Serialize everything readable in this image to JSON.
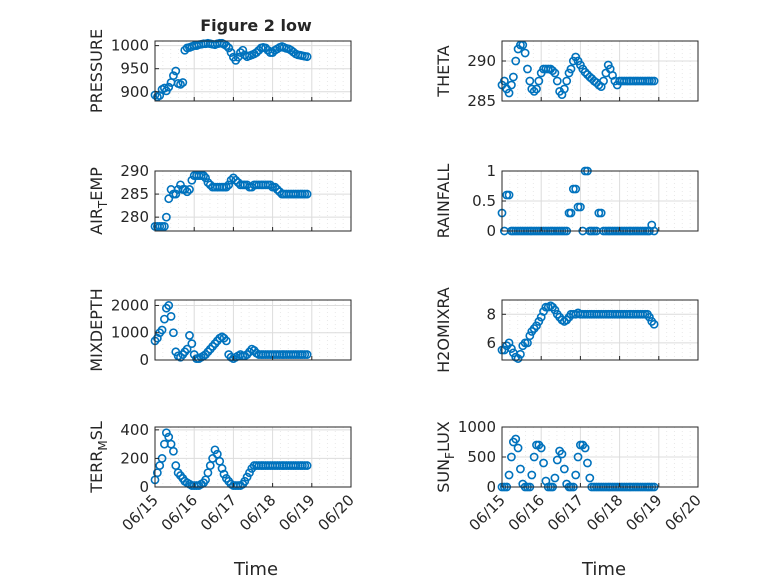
{
  "figure": {
    "title": "Figure 2 low",
    "xlabel": "Time"
  },
  "style": {
    "marker_color": "#0072BD",
    "grid_color": "#d9d9d9",
    "axis_color": "#262626"
  },
  "chart_data": [
    {
      "type": "scatter",
      "id": "pressure",
      "ylabel": "PRESSURE",
      "title": "Figure 2 low",
      "x_ticks": [],
      "y_ticks": [
        "900",
        "950",
        "1000"
      ],
      "y_tick_values": [
        900,
        950,
        1000
      ],
      "xlim": [
        15.0,
        20.0
      ],
      "ylim": [
        880,
        1010
      ],
      "x": [
        15.0,
        15.06,
        15.12,
        15.18,
        15.24,
        15.29,
        15.35,
        15.41,
        15.47,
        15.53,
        15.59,
        15.65,
        15.71,
        15.76,
        15.82,
        15.88,
        15.94,
        16.0,
        16.06,
        16.12,
        16.18,
        16.24,
        16.29,
        16.35,
        16.41,
        16.47,
        16.53,
        16.59,
        16.65,
        16.71,
        16.76,
        16.82,
        16.88,
        16.94,
        17.0,
        17.06,
        17.12,
        17.18,
        17.24,
        17.29,
        17.35,
        17.41,
        17.47,
        17.53,
        17.59,
        17.65,
        17.71,
        17.76,
        17.82,
        17.88,
        17.94,
        18.0,
        18.06,
        18.12,
        18.18,
        18.24,
        18.29,
        18.35,
        18.41,
        18.47,
        18.53,
        18.59,
        18.65,
        18.71,
        18.76,
        18.82,
        18.88
      ],
      "y": [
        893,
        889,
        892,
        905,
        908,
        902,
        910,
        920,
        935,
        945,
        918,
        916,
        920,
        990,
        995,
        996,
        998,
        1000,
        1000,
        1002,
        1003,
        1004,
        1004,
        1005,
        1004,
        1003,
        1002,
        1004,
        1005,
        1005,
        1003,
        1000,
        995,
        985,
        975,
        968,
        975,
        985,
        990,
        980,
        976,
        978,
        980,
        982,
        985,
        990,
        995,
        996,
        995,
        990,
        985,
        985,
        990,
        993,
        996,
        998,
        996,
        994,
        993,
        990,
        986,
        982,
        980,
        979,
        978,
        977,
        976
      ]
    },
    {
      "type": "scatter",
      "id": "theta",
      "ylabel": "THETA",
      "x_ticks": [],
      "y_ticks": [
        "285",
        "290"
      ],
      "y_tick_values": [
        285,
        290
      ],
      "xlim": [
        15.0,
        20.0
      ],
      "ylim": [
        285,
        292.5
      ],
      "x": [
        15.0,
        15.06,
        15.12,
        15.18,
        15.24,
        15.29,
        15.35,
        15.41,
        15.47,
        15.53,
        15.59,
        15.65,
        15.71,
        15.76,
        15.82,
        15.88,
        15.94,
        16.0,
        16.06,
        16.12,
        16.18,
        16.24,
        16.29,
        16.35,
        16.41,
        16.47,
        16.53,
        16.59,
        16.65,
        16.71,
        16.76,
        16.82,
        16.88,
        16.94,
        17.0,
        17.06,
        17.12,
        17.18,
        17.24,
        17.29,
        17.35,
        17.41,
        17.47,
        17.53,
        17.59,
        17.65,
        17.71,
        17.76,
        17.82,
        17.88,
        17.94,
        18.0,
        18.06,
        18.12,
        18.18,
        18.24,
        18.29,
        18.35,
        18.41,
        18.47,
        18.53,
        18.59,
        18.65,
        18.71,
        18.76,
        18.82,
        18.88
      ],
      "y": [
        287,
        287.5,
        286.5,
        286,
        287,
        288,
        290,
        291.5,
        292,
        292,
        291,
        289,
        287.5,
        286.5,
        286.2,
        286.5,
        287.5,
        288.5,
        289,
        289,
        289,
        289,
        288.8,
        288.5,
        287.5,
        286.2,
        285.8,
        286.5,
        287.5,
        288.5,
        289,
        290,
        290.5,
        290,
        289.5,
        289,
        288.6,
        288.3,
        288,
        287.8,
        287.5,
        287.3,
        287,
        286.8,
        287.5,
        288.5,
        289.5,
        289,
        288.2,
        287.5,
        287,
        287.5,
        287.5,
        287.5,
        287.5,
        287.5,
        287.5,
        287.5,
        287.5,
        287.5,
        287.5,
        287.5,
        287.5,
        287.5,
        287.5,
        287.5,
        287.5
      ]
    },
    {
      "type": "scatter",
      "id": "air_temp",
      "ylabel": "AIR_TEMP",
      "x_ticks": [],
      "y_ticks": [
        "280",
        "285",
        "290"
      ],
      "y_tick_values": [
        280,
        285,
        290
      ],
      "xlim": [
        15.0,
        20.0
      ],
      "ylim": [
        277,
        290
      ],
      "x": [
        15.0,
        15.06,
        15.12,
        15.18,
        15.24,
        15.29,
        15.35,
        15.41,
        15.47,
        15.53,
        15.59,
        15.65,
        15.71,
        15.76,
        15.82,
        15.88,
        15.94,
        16.0,
        16.06,
        16.12,
        16.18,
        16.24,
        16.29,
        16.35,
        16.41,
        16.47,
        16.53,
        16.59,
        16.65,
        16.71,
        16.76,
        16.82,
        16.88,
        16.94,
        17.0,
        17.06,
        17.12,
        17.18,
        17.24,
        17.29,
        17.35,
        17.41,
        17.47,
        17.53,
        17.59,
        17.65,
        17.71,
        17.76,
        17.82,
        17.88,
        17.94,
        18.0,
        18.06,
        18.12,
        18.18,
        18.24,
        18.29,
        18.35,
        18.41,
        18.47,
        18.53,
        18.59,
        18.65,
        18.71,
        18.76,
        18.82,
        18.88
      ],
      "y": [
        278,
        278,
        278,
        278,
        278,
        280,
        284,
        286,
        285,
        285,
        286,
        287,
        286,
        286,
        285.5,
        286,
        288,
        289,
        289,
        289,
        289,
        289,
        288.5,
        287.5,
        287,
        286.5,
        286.5,
        286.5,
        286.5,
        286.5,
        286.5,
        286.5,
        287,
        288,
        288.5,
        288,
        287.5,
        287,
        287,
        287,
        287,
        286.5,
        286.5,
        287,
        287,
        287,
        287,
        287,
        287,
        287,
        287,
        286.5,
        286.5,
        286,
        285.5,
        285,
        285,
        285,
        285,
        285,
        285,
        285,
        285,
        285,
        285,
        285,
        285
      ]
    },
    {
      "type": "scatter",
      "id": "rainfall",
      "ylabel": "RAINFALL",
      "x_ticks": [],
      "y_ticks": [
        "0",
        "0.5",
        "1"
      ],
      "y_tick_values": [
        0,
        0.5,
        1
      ],
      "xlim": [
        15.0,
        20.0
      ],
      "ylim": [
        0,
        1.0
      ],
      "x": [
        15.0,
        15.06,
        15.12,
        15.18,
        15.24,
        15.29,
        15.35,
        15.41,
        15.47,
        15.53,
        15.59,
        15.65,
        15.71,
        15.76,
        15.82,
        15.88,
        15.94,
        16.0,
        16.06,
        16.12,
        16.18,
        16.24,
        16.29,
        16.35,
        16.41,
        16.47,
        16.53,
        16.59,
        16.65,
        16.71,
        16.76,
        16.82,
        16.88,
        16.94,
        17.0,
        17.06,
        17.12,
        17.18,
        17.24,
        17.29,
        17.35,
        17.41,
        17.47,
        17.53,
        17.59,
        17.65,
        17.71,
        17.76,
        17.82,
        17.88,
        17.94,
        18.0,
        18.06,
        18.12,
        18.18,
        18.24,
        18.29,
        18.35,
        18.41,
        18.47,
        18.53,
        18.59,
        18.65,
        18.71,
        18.76,
        18.82,
        18.88
      ],
      "y": [
        0.3,
        0,
        0.6,
        0.6,
        0,
        0,
        0,
        0,
        0,
        0,
        0,
        0,
        0,
        0,
        0,
        0,
        0,
        0,
        0,
        0,
        0,
        0,
        0,
        0,
        0,
        0,
        0,
        0,
        0,
        0.3,
        0.3,
        0.7,
        0.7,
        0.4,
        0.4,
        0,
        1,
        1,
        0,
        0,
        0,
        0,
        0.3,
        0.3,
        0,
        0,
        0,
        0,
        0,
        0,
        0,
        0,
        0,
        0,
        0,
        0,
        0,
        0,
        0,
        0,
        0,
        0,
        0,
        0,
        0,
        0.1,
        0
      ]
    },
    {
      "type": "scatter",
      "id": "mixdepth",
      "ylabel": "MIXDEPTH",
      "x_ticks": [],
      "y_ticks": [
        "0",
        "1000",
        "2000"
      ],
      "y_tick_values": [
        0,
        1000,
        2000
      ],
      "xlim": [
        15.0,
        20.0
      ],
      "ylim": [
        0,
        2200
      ],
      "x": [
        15.0,
        15.06,
        15.12,
        15.18,
        15.24,
        15.29,
        15.35,
        15.41,
        15.47,
        15.53,
        15.59,
        15.65,
        15.71,
        15.76,
        15.82,
        15.88,
        15.94,
        16.0,
        16.06,
        16.12,
        16.18,
        16.24,
        16.29,
        16.35,
        16.41,
        16.47,
        16.53,
        16.59,
        16.65,
        16.71,
        16.76,
        16.82,
        16.88,
        16.94,
        17.0,
        17.06,
        17.12,
        17.18,
        17.24,
        17.29,
        17.35,
        17.41,
        17.47,
        17.53,
        17.59,
        17.65,
        17.71,
        17.76,
        17.82,
        17.88,
        17.94,
        18.0,
        18.06,
        18.12,
        18.18,
        18.24,
        18.29,
        18.35,
        18.41,
        18.47,
        18.53,
        18.59,
        18.65,
        18.71,
        18.76,
        18.82,
        18.88
      ],
      "y": [
        700,
        800,
        1000,
        1100,
        1500,
        1900,
        2000,
        1600,
        1000,
        300,
        150,
        100,
        200,
        300,
        400,
        900,
        600,
        200,
        50,
        50,
        100,
        150,
        200,
        300,
        400,
        500,
        600,
        700,
        800,
        850,
        800,
        700,
        200,
        100,
        50,
        100,
        150,
        200,
        150,
        150,
        200,
        300,
        400,
        350,
        250,
        200,
        200,
        200,
        200,
        200,
        200,
        200,
        200,
        200,
        200,
        200,
        200,
        200,
        200,
        200,
        200,
        200,
        200,
        200,
        200,
        200,
        200
      ]
    },
    {
      "type": "scatter",
      "id": "h2omixra",
      "ylabel": "H2OMIXRA",
      "x_ticks": [],
      "y_ticks": [
        "6",
        "8"
      ],
      "y_tick_values": [
        6,
        8
      ],
      "xlim": [
        15.0,
        20.0
      ],
      "ylim": [
        4.8,
        9
      ],
      "x": [
        15.0,
        15.06,
        15.12,
        15.18,
        15.24,
        15.29,
        15.35,
        15.41,
        15.47,
        15.53,
        15.59,
        15.65,
        15.71,
        15.76,
        15.82,
        15.88,
        15.94,
        16.0,
        16.06,
        16.12,
        16.18,
        16.24,
        16.29,
        16.35,
        16.41,
        16.47,
        16.53,
        16.59,
        16.65,
        16.71,
        16.76,
        16.82,
        16.88,
        16.94,
        17.0,
        17.06,
        17.12,
        17.18,
        17.24,
        17.29,
        17.35,
        17.41,
        17.47,
        17.53,
        17.59,
        17.65,
        17.71,
        17.76,
        17.82,
        17.88,
        17.94,
        18.0,
        18.06,
        18.12,
        18.18,
        18.24,
        18.29,
        18.35,
        18.41,
        18.47,
        18.53,
        18.59,
        18.65,
        18.71,
        18.76,
        18.82,
        18.88
      ],
      "y": [
        5.5,
        5.5,
        5.8,
        6,
        5.6,
        5.3,
        5,
        4.9,
        5.2,
        5.8,
        6,
        6,
        6.5,
        6.8,
        7,
        7.2,
        7.5,
        7.8,
        8.2,
        8.5,
        8.5,
        8.6,
        8.5,
        8.3,
        8,
        7.8,
        7.6,
        7.5,
        7.6,
        7.8,
        8,
        8,
        8,
        8.1,
        8,
        8,
        8,
        8,
        8,
        8,
        8,
        8,
        8,
        8,
        8,
        8,
        8,
        8,
        8,
        8,
        8,
        8,
        8,
        8,
        8,
        8,
        8,
        8,
        8,
        8,
        8,
        8,
        8,
        8,
        7.8,
        7.5,
        7.3
      ]
    },
    {
      "type": "scatter",
      "id": "terr_msl",
      "ylabel": "TERR_MSL",
      "x_ticks": [
        "06/15",
        "06/16",
        "06/17",
        "06/18",
        "06/19",
        "06/20"
      ],
      "x_tick_values": [
        15,
        16,
        17,
        18,
        19,
        20
      ],
      "y_ticks": [
        "0",
        "200",
        "400"
      ],
      "y_tick_values": [
        0,
        200,
        400
      ],
      "xlim": [
        15.0,
        20.0
      ],
      "ylim": [
        0,
        420
      ],
      "x": [
        15.0,
        15.06,
        15.12,
        15.18,
        15.24,
        15.29,
        15.35,
        15.41,
        15.47,
        15.53,
        15.59,
        15.65,
        15.71,
        15.76,
        15.82,
        15.88,
        15.94,
        16.0,
        16.06,
        16.12,
        16.18,
        16.24,
        16.29,
        16.35,
        16.41,
        16.47,
        16.53,
        16.59,
        16.65,
        16.71,
        16.76,
        16.82,
        16.88,
        16.94,
        17.0,
        17.06,
        17.12,
        17.18,
        17.24,
        17.29,
        17.35,
        17.41,
        17.47,
        17.53,
        17.59,
        17.65,
        17.71,
        17.76,
        17.82,
        17.88,
        17.94,
        18.0,
        18.06,
        18.12,
        18.18,
        18.24,
        18.29,
        18.35,
        18.41,
        18.47,
        18.53,
        18.59,
        18.65,
        18.71,
        18.76,
        18.82,
        18.88
      ],
      "y": [
        50,
        100,
        150,
        200,
        300,
        380,
        350,
        300,
        250,
        150,
        100,
        80,
        60,
        40,
        30,
        20,
        10,
        10,
        10,
        10,
        20,
        30,
        50,
        100,
        150,
        200,
        260,
        230,
        180,
        130,
        90,
        60,
        40,
        20,
        10,
        10,
        10,
        10,
        20,
        40,
        70,
        100,
        130,
        150,
        150,
        150,
        150,
        150,
        150,
        150,
        150,
        150,
        150,
        150,
        150,
        150,
        150,
        150,
        150,
        150,
        150,
        150,
        150,
        150,
        150,
        150,
        150
      ]
    },
    {
      "type": "scatter",
      "id": "sun_flux",
      "ylabel": "SUN_FLUX",
      "x_ticks": [
        "06/15",
        "06/16",
        "06/17",
        "06/18",
        "06/19",
        "06/20"
      ],
      "x_tick_values": [
        15,
        16,
        17,
        18,
        19,
        20
      ],
      "y_ticks": [
        "0",
        "500",
        "1000"
      ],
      "y_tick_values": [
        0,
        500,
        1000
      ],
      "xlim": [
        15.0,
        20.0
      ],
      "ylim": [
        0,
        1000
      ],
      "x": [
        15.0,
        15.06,
        15.12,
        15.18,
        15.24,
        15.29,
        15.35,
        15.41,
        15.47,
        15.53,
        15.59,
        15.65,
        15.71,
        15.76,
        15.82,
        15.88,
        15.94,
        16.0,
        16.06,
        16.12,
        16.18,
        16.24,
        16.29,
        16.35,
        16.41,
        16.47,
        16.53,
        16.59,
        16.65,
        16.71,
        16.76,
        16.82,
        16.88,
        16.94,
        17.0,
        17.06,
        17.12,
        17.18,
        17.24,
        17.29,
        17.35,
        17.41,
        17.47,
        17.53,
        17.59,
        17.65,
        17.71,
        17.76,
        17.82,
        17.88,
        17.94,
        18.0,
        18.06,
        18.12,
        18.18,
        18.24,
        18.29,
        18.35,
        18.41,
        18.47,
        18.53,
        18.59,
        18.65,
        18.71,
        18.76,
        18.82,
        18.88
      ],
      "y": [
        0,
        0,
        0,
        200,
        500,
        750,
        800,
        650,
        300,
        50,
        0,
        0,
        0,
        200,
        500,
        700,
        700,
        650,
        400,
        100,
        0,
        0,
        0,
        150,
        450,
        600,
        550,
        300,
        50,
        0,
        0,
        0,
        200,
        500,
        700,
        700,
        650,
        400,
        150,
        0,
        0,
        0,
        0,
        0,
        0,
        0,
        0,
        0,
        0,
        0,
        0,
        0,
        0,
        0,
        0,
        0,
        0,
        0,
        0,
        0,
        0,
        0,
        0,
        0,
        0,
        0,
        0
      ]
    }
  ]
}
